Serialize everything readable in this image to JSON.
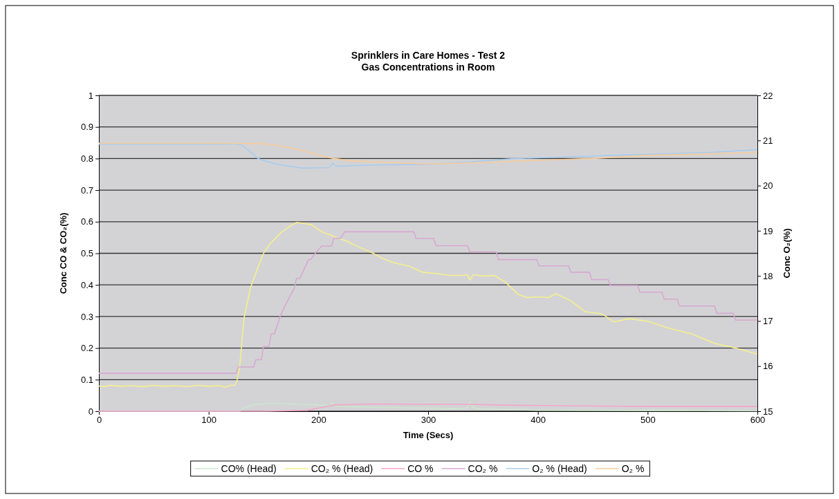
{
  "chart_data": {
    "type": "line",
    "title": "Sprinklers in Care Homes - Test 2",
    "subtitle": "Gas Concentrations in Room",
    "xlabel": "Time (Secs)",
    "ylabel": "Conc CO & CO₂(%)",
    "y2label": "Conc O₂(%)",
    "xlim": [
      0,
      600
    ],
    "xticks": [
      0,
      100,
      200,
      300,
      400,
      500,
      600
    ],
    "ylim": [
      0,
      1
    ],
    "yticks": [
      0,
      0.1,
      0.2,
      0.3,
      0.4,
      0.5,
      0.6,
      0.7,
      0.8,
      0.9,
      1
    ],
    "y2lim": [
      15,
      22
    ],
    "y2ticks": [
      15,
      16,
      17,
      18,
      19,
      20,
      21,
      22
    ],
    "grid": "y",
    "legend": "bottom",
    "marker": "none",
    "line_style": "solid",
    "series": [
      {
        "name": "CO% (Head)",
        "color": "#cce6cc",
        "x": [
          0,
          125,
          128,
          132,
          140,
          155,
          170,
          185,
          200,
          210,
          213,
          216,
          230,
          260,
          300,
          330,
          336,
          338,
          341,
          345,
          380,
          400,
          500,
          600
        ],
        "values": [
          0,
          0,
          0,
          0.01,
          0.02,
          0.025,
          0.024,
          0.022,
          0.02,
          0.018,
          0.027,
          0.016,
          0.014,
          0.012,
          0.01,
          0.008,
          0.012,
          0.028,
          0.012,
          0.008,
          0.005,
          0.003,
          0.002,
          0.001
        ]
      },
      {
        "name": "CO₂ % (Head)",
        "color": "#f5f08c",
        "x": [
          0,
          5,
          10,
          20,
          30,
          40,
          50,
          60,
          70,
          80,
          90,
          100,
          110,
          115,
          120,
          124,
          126,
          128.5,
          132,
          138,
          145,
          150,
          156,
          166,
          175,
          180,
          186,
          194,
          200,
          205,
          211,
          218,
          225,
          233,
          240,
          250,
          257,
          269,
          282,
          295,
          310,
          320,
          330,
          336,
          338,
          341,
          350,
          360,
          370,
          382,
          390,
          400,
          410,
          416,
          430,
          443,
          455,
          460,
          469,
          483,
          500,
          519,
          540,
          561,
          580,
          600
        ],
        "values": [
          0.08,
          0.078,
          0.082,
          0.079,
          0.081,
          0.078,
          0.082,
          0.079,
          0.081,
          0.078,
          0.082,
          0.079,
          0.081,
          0.076,
          0.082,
          0.082,
          0.1,
          0.147,
          0.29,
          0.39,
          0.456,
          0.5,
          0.53,
          0.566,
          0.588,
          0.598,
          0.595,
          0.59,
          0.575,
          0.565,
          0.558,
          0.547,
          0.54,
          0.526,
          0.515,
          0.5,
          0.486,
          0.47,
          0.46,
          0.44,
          0.435,
          0.43,
          0.43,
          0.432,
          0.415,
          0.432,
          0.428,
          0.43,
          0.41,
          0.37,
          0.36,
          0.362,
          0.36,
          0.372,
          0.35,
          0.315,
          0.31,
          0.305,
          0.283,
          0.293,
          0.285,
          0.263,
          0.245,
          0.215,
          0.2,
          0.181
        ]
      },
      {
        "name": "CO %",
        "color": "#f4a6c8",
        "x": [
          0,
          150,
          190,
          200,
          215,
          250,
          300,
          340,
          360,
          400,
          440,
          500,
          600
        ],
        "values": [
          0,
          0,
          0.003,
          0.01,
          0.02,
          0.023,
          0.022,
          0.022,
          0.02,
          0.018,
          0.017,
          0.015,
          0.015
        ]
      },
      {
        "name": "CO₂ %",
        "color": "#d8a8d0",
        "x": [
          0,
          125,
          127,
          141,
          143,
          148,
          150,
          155,
          157,
          160,
          165,
          172,
          178,
          180,
          183,
          191,
          193,
          198,
          203,
          212,
          214,
          220,
          224,
          287,
          289,
          305,
          307,
          336,
          338,
          362,
          364,
          399,
          401,
          428,
          430,
          447,
          449,
          464,
          466,
          491,
          493,
          513,
          515,
          527,
          529,
          561,
          563,
          578,
          580,
          600
        ],
        "values": [
          0.12,
          0.12,
          0.14,
          0.14,
          0.163,
          0.163,
          0.205,
          0.205,
          0.245,
          0.245,
          0.3,
          0.35,
          0.39,
          0.42,
          0.42,
          0.48,
          0.48,
          0.504,
          0.523,
          0.523,
          0.547,
          0.547,
          0.568,
          0.568,
          0.547,
          0.547,
          0.524,
          0.524,
          0.504,
          0.504,
          0.48,
          0.48,
          0.46,
          0.46,
          0.44,
          0.44,
          0.417,
          0.417,
          0.398,
          0.398,
          0.377,
          0.377,
          0.355,
          0.355,
          0.333,
          0.333,
          0.31,
          0.31,
          0.289,
          0.289
        ]
      },
      {
        "name": "O₂ % (Head)",
        "color": "#a8ccee",
        "axis": "y2",
        "x": [
          0,
          124,
          130,
          138,
          145,
          155,
          165,
          185,
          210,
          213,
          216,
          240,
          260,
          300,
          340,
          380,
          430,
          470,
          520,
          560,
          600
        ],
        "values": [
          20.92,
          20.92,
          20.9,
          20.75,
          20.6,
          20.52,
          20.46,
          20.39,
          20.4,
          20.5,
          20.43,
          20.45,
          20.46,
          20.47,
          20.53,
          20.6,
          20.64,
          20.67,
          20.71,
          20.74,
          20.8
        ]
      },
      {
        "name": "O₂ %",
        "color": "#f8cc98",
        "axis": "y2",
        "x": [
          0,
          100,
          150,
          160,
          170,
          185,
          200,
          214,
          230,
          250,
          300,
          350,
          400,
          450,
          500,
          550,
          600
        ],
        "values": [
          20.94,
          20.94,
          20.93,
          20.9,
          20.86,
          20.78,
          20.68,
          20.6,
          20.55,
          20.53,
          20.48,
          20.51,
          20.56,
          20.6,
          20.67,
          20.7,
          20.74
        ]
      }
    ]
  }
}
